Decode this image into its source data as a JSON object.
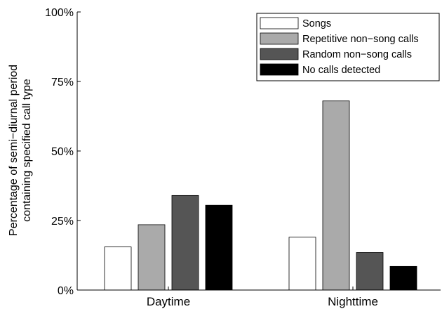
{
  "chart_data": {
    "type": "bar",
    "title": "",
    "xlabel": "",
    "ylabel": "Percentage of semi-diurnal period containing specified call type",
    "ylabel_lines": [
      "Percentage of semi−diurnal period",
      "containing specified call type"
    ],
    "categories": [
      "Daytime",
      "Nighttime"
    ],
    "ylim": [
      0,
      100
    ],
    "yticks": [
      0,
      25,
      50,
      75,
      100
    ],
    "ytick_labels": [
      "0%",
      "25%",
      "50%",
      "75%",
      "100%"
    ],
    "legend_position": "top-right",
    "grid": false,
    "series": [
      {
        "name": "Songs",
        "color": "#ffffff",
        "values": [
          15.5,
          19
        ]
      },
      {
        "name": "Repetitive non−song calls",
        "color": "#aaaaaa",
        "values": [
          23.5,
          68
        ]
      },
      {
        "name": "Random non−song calls",
        "color": "#555555",
        "values": [
          34,
          13.5
        ]
      },
      {
        "name": "No calls detected",
        "color": "#000000",
        "values": [
          30.5,
          8.5
        ]
      }
    ]
  }
}
